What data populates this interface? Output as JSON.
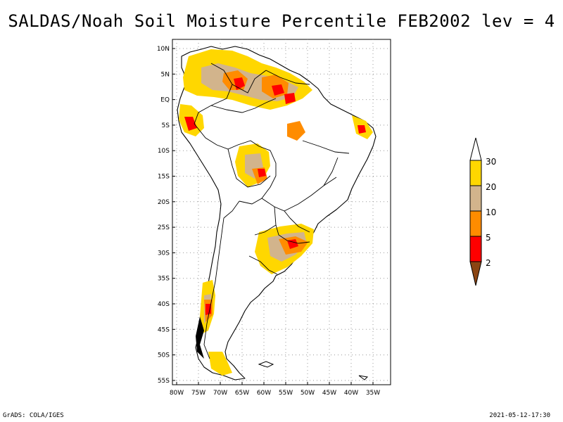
{
  "title": "SALDAS/Noah Soil Moisture Percentile FEB2002 lev = 4",
  "footer": {
    "left": "GrADS: COLA/IGES",
    "right": "2021-05-12-17:30"
  },
  "map": {
    "lat_labels": [
      "10N",
      "5N",
      "EQ",
      "5S",
      "10S",
      "15S",
      "20S",
      "25S",
      "30S",
      "35S",
      "40S",
      "45S",
      "50S",
      "55S"
    ],
    "lon_labels": [
      "80W",
      "75W",
      "70W",
      "65W",
      "60W",
      "55W",
      "50W",
      "45W",
      "40W",
      "35W"
    ]
  },
  "legend": {
    "labels": [
      "30",
      "20",
      "10",
      "5",
      "2"
    ],
    "colors": {
      "above": "#ffffff",
      "c20_30": "#ffd700",
      "c10_20": "#d2b48c",
      "c5_10": "#ff8c00",
      "c2_5": "#ff0000",
      "below": "#8b4513"
    }
  }
}
